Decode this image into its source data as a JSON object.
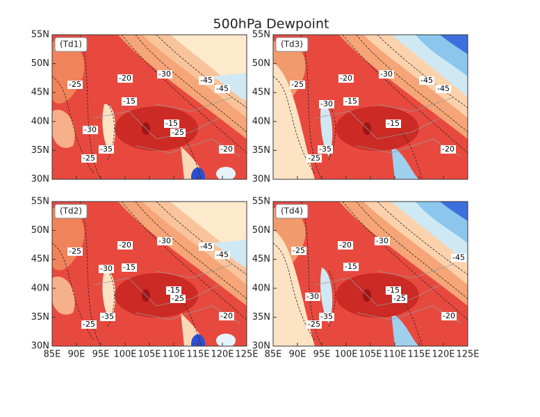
{
  "title": "500hPa Dewpoint",
  "map": {
    "lon_lim": [
      85,
      125
    ],
    "lat_lim": [
      30,
      55
    ],
    "lon_ticks": [
      {
        "value": 85,
        "label": "85E"
      },
      {
        "value": 90,
        "label": "90E"
      },
      {
        "value": 95,
        "label": "95E"
      },
      {
        "value": 100,
        "label": "100E"
      },
      {
        "value": 105,
        "label": "105E"
      },
      {
        "value": 110,
        "label": "110E"
      },
      {
        "value": 115,
        "label": "115E"
      },
      {
        "value": 120,
        "label": "120E"
      },
      {
        "value": 125,
        "label": "125E"
      }
    ],
    "lat_ticks": [
      {
        "value": 30,
        "label": "30N"
      },
      {
        "value": 35,
        "label": "35N"
      },
      {
        "value": 40,
        "label": "40N"
      },
      {
        "value": 45,
        "label": "45N"
      },
      {
        "value": 50,
        "label": "50N"
      },
      {
        "value": 55,
        "label": "55N"
      }
    ],
    "panels": [
      {
        "label": "(Td1)",
        "contour_labels": [
          -25,
          -20,
          -30,
          -45,
          -45,
          -15,
          -30,
          -15,
          -25,
          -35,
          -20,
          -25
        ]
      },
      {
        "label": "(Td3)",
        "contour_labels": [
          -25,
          -20,
          -30,
          -45,
          -45,
          -30,
          -15,
          -15,
          -35,
          -20,
          -25
        ]
      },
      {
        "label": "(Td2)",
        "contour_labels": [
          -25,
          -20,
          -30,
          -45,
          -45,
          -30,
          -15,
          -15,
          -25,
          -35,
          -20,
          -25
        ]
      },
      {
        "label": "(Td4)",
        "contour_labels": [
          -25,
          -20,
          -30,
          -45,
          -30,
          -15,
          -15,
          -25,
          -35,
          -20,
          -25
        ]
      }
    ]
  }
}
